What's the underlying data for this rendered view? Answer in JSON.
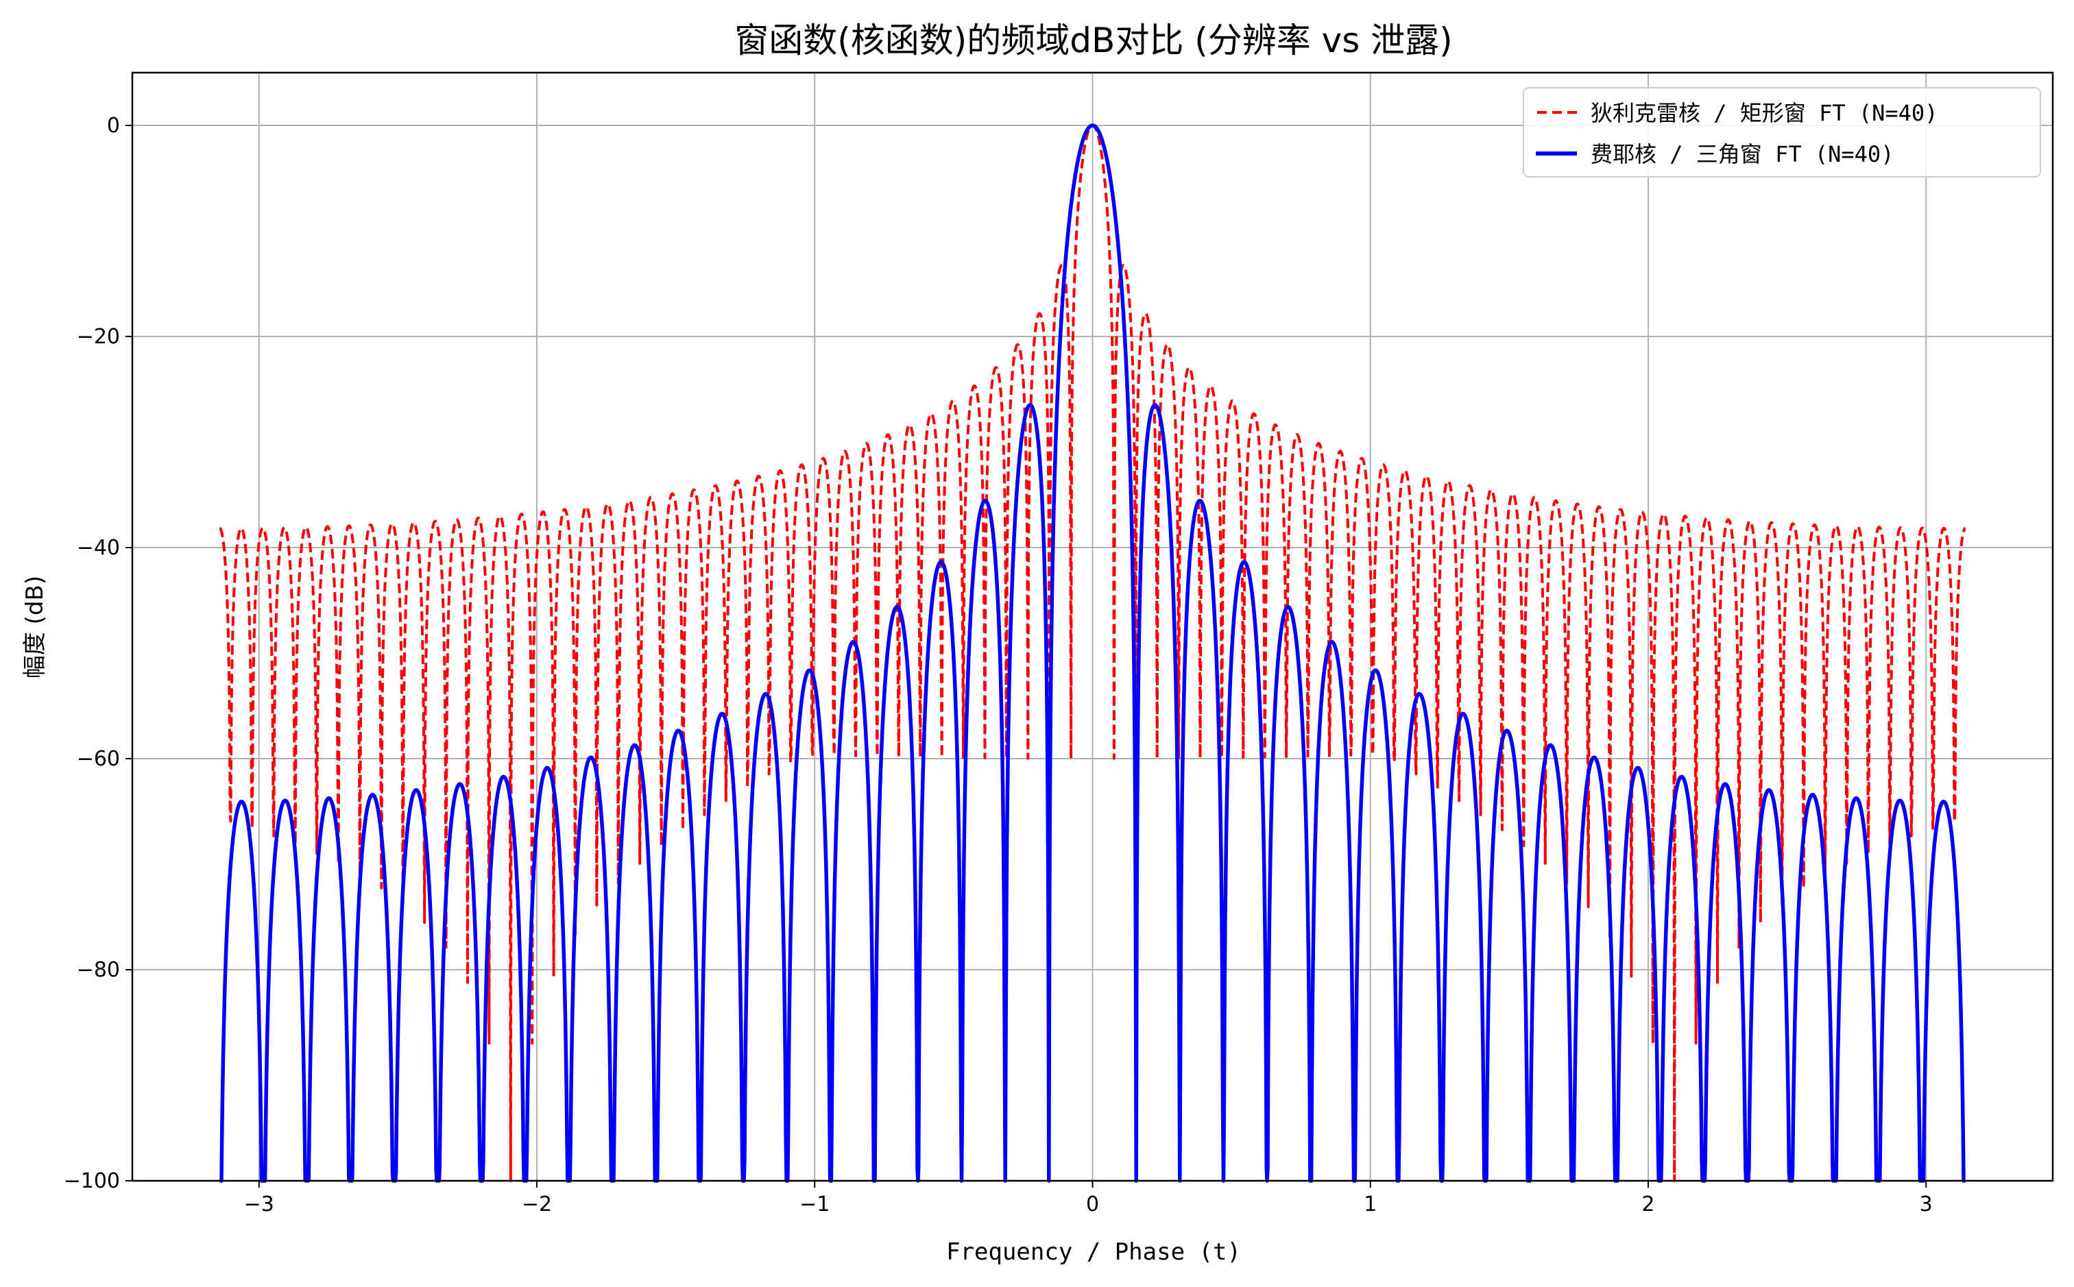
{
  "chart_data": {
    "type": "line",
    "title": "窗函数(核函数)的频域dB对比 (分辨率 vs 泄露)",
    "xlabel": "Frequency / Phase (t)",
    "ylabel": "幅度 (dB)",
    "xlim": [
      -3.456,
      3.456
    ],
    "ylim": [
      -100,
      5
    ],
    "grid": true,
    "legend_position": "top-right",
    "x_ticks": [
      -3,
      -2,
      -1,
      0,
      1,
      2,
      3
    ],
    "x_tick_labels": [
      "−3",
      "−2",
      "−1",
      "0",
      "1",
      "2",
      "3"
    ],
    "y_ticks": [
      0,
      -20,
      -40,
      -60,
      -80,
      -100
    ],
    "y_tick_labels": [
      "0",
      "−20",
      "−40",
      "−60",
      "−80",
      "−100"
    ],
    "x_domain": [
      -3.14159,
      3.14159
    ],
    "samples": 3000,
    "floor_db": -100,
    "series": [
      {
        "name": "狄利克雷核 / 矩形窗 FT (N=40)",
        "kind": "dirichlet",
        "terms": 81,
        "color": "#ff0000",
        "style": "dashed",
        "first_sidelobe_db": -13.3,
        "edge_db": -38.2
      },
      {
        "name": "费耶核 / 三角窗 FT (N=40)",
        "kind": "fejer",
        "N": 40,
        "color": "#0000ff",
        "style": "solid",
        "first_sidelobe_db": -26.5,
        "edge_db": -64.1
      }
    ]
  }
}
